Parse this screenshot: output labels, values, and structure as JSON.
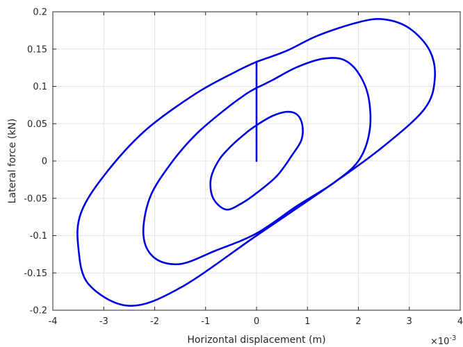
{
  "chart_data": {
    "type": "line",
    "title": "",
    "xlabel": "Horizontal displacement (m)",
    "ylabel": "Lateral force (kN)",
    "x_exponent_label": "×10",
    "x_exponent_power": "-3",
    "x_scale_factor": 0.001,
    "xlim": [
      -4,
      4
    ],
    "ylim": [
      -0.2,
      0.2
    ],
    "x_ticks": [
      -4,
      -3,
      -2,
      -1,
      0,
      1,
      2,
      3,
      4
    ],
    "y_ticks": [
      -0.2,
      -0.15,
      -0.1,
      -0.05,
      0,
      0.05,
      0.1,
      0.15,
      0.2
    ],
    "x_tick_labels": [
      "-4",
      "-3",
      "-2",
      "-1",
      "0",
      "1",
      "2",
      "3",
      "4"
    ],
    "y_tick_labels": [
      "-0.2",
      "-0.15",
      "-0.1",
      "-0.05",
      "0",
      "0.05",
      "0.1",
      "0.15",
      "0.2"
    ],
    "grid": true,
    "line_color": "#0000e6",
    "series": [
      {
        "x": [
          0,
          0,
          0.3,
          0.6,
          0.8,
          0.9,
          0.88,
          0.7,
          0.4,
          0.0,
          -0.3,
          -0.6,
          -0.85,
          -0.9,
          -0.75,
          -0.5,
          -0.2,
          0
        ],
        "y": [
          0,
          0.048,
          0.06,
          0.066,
          0.062,
          0.048,
          0.028,
          0.008,
          -0.02,
          -0.043,
          -0.057,
          -0.065,
          -0.05,
          -0.025,
          0.0,
          0.02,
          0.038,
          0.048
        ]
      },
      {
        "x": [
          0,
          0,
          0.3,
          0.8,
          1.3,
          1.7,
          2.0,
          2.2,
          2.22,
          2.0,
          1.5,
          0.8,
          0.0,
          -0.8,
          -1.5,
          -2.0,
          -2.22,
          -2.1,
          -1.7,
          -1.2,
          -0.6,
          -0.2,
          0
        ],
        "y": [
          0.048,
          0.098,
          0.108,
          0.126,
          0.137,
          0.136,
          0.118,
          0.085,
          0.04,
          0.0,
          -0.03,
          -0.06,
          -0.097,
          -0.12,
          -0.138,
          -0.13,
          -0.1,
          -0.05,
          -0.005,
          0.035,
          0.07,
          0.09,
          0.098
        ]
      },
      {
        "x": [
          0,
          0,
          0.6,
          1.2,
          2.0,
          2.5,
          3.0,
          3.4,
          3.5,
          3.3,
          2.5,
          1.5,
          0.0,
          -1.5,
          -2.5,
          -3.3,
          -3.5,
          -3.45,
          -3.0,
          -2.2,
          -1.2,
          -0.4,
          0
        ],
        "y": [
          0.098,
          0.133,
          0.148,
          0.168,
          0.186,
          0.19,
          0.178,
          0.148,
          0.11,
          0.07,
          0.02,
          -0.03,
          -0.1,
          -0.17,
          -0.194,
          -0.165,
          -0.115,
          -0.07,
          -0.02,
          0.04,
          0.09,
          0.12,
          0.133
        ]
      }
    ]
  }
}
